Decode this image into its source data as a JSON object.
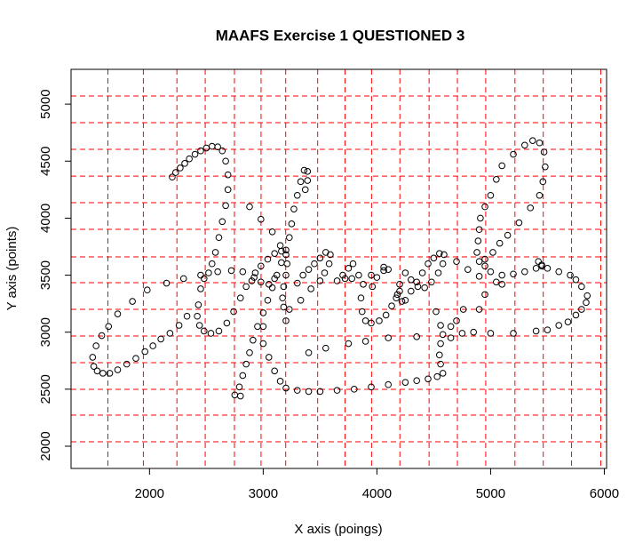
{
  "chart_data": {
    "type": "scatter",
    "title": "MAAFS Exercise 1 QUESTIONED 3",
    "x_label": "X axis (poings)",
    "y_label": "Y axis (points)",
    "xlim": [
      1310,
      6020
    ],
    "ylim": [
      1805,
      5305
    ],
    "xticks": [
      2000,
      3000,
      4000,
      5000,
      6000
    ],
    "yticks": [
      2000,
      2500,
      3000,
      3500,
      4000,
      4500,
      5000
    ],
    "color": "#000000",
    "grid_color": "#ff0000",
    "vlines": [
      1634,
      1946,
      2241,
      2490,
      2747,
      2981,
      3198,
      3479,
      3720,
      3953,
      4202,
      4459,
      4708,
      4957,
      5214,
      5463,
      5712,
      5969
    ],
    "hlines": [
      2039,
      2273,
      2499,
      2733,
      2966,
      3200,
      3434,
      3660,
      3902,
      4136,
      4369,
      4603,
      4837,
      5071
    ],
    "x": [
      2200,
      2230,
      2270,
      2310,
      2350,
      2400,
      2450,
      2500,
      2550,
      2600,
      2640,
      2670,
      2690,
      2690,
      2670,
      2640,
      2610,
      2580,
      2550,
      2520,
      2480,
      2450,
      2430,
      2420,
      2440,
      2480,
      2540,
      2610,
      2680,
      2740,
      2800,
      2850,
      1500,
      1530,
      1580,
      1640,
      1720,
      1850,
      1980,
      2150,
      2300,
      2450,
      2600,
      2720,
      2820,
      1510,
      1540,
      1590,
      1650,
      1720,
      1800,
      1880,
      1960,
      2030,
      2100,
      2180,
      2260,
      2330,
      2750,
      2800,
      2790,
      2820,
      2850,
      2880,
      2910,
      2950,
      3000,
      3040,
      3080,
      3120,
      3160,
      3200,
      3230,
      3250,
      3270,
      3300,
      3330,
      3360,
      3390,
      3390,
      3370,
      2900,
      2930,
      2980,
      3040,
      3100,
      3160,
      3200,
      3210,
      3200,
      3180,
      3170,
      3180,
      3230,
      3100,
      3050,
      2980,
      2920,
      2880,
      2980,
      3080,
      3150,
      3000,
      3000,
      3050,
      3100,
      3150,
      3200,
      3300,
      3400,
      3500,
      3650,
      3800,
      3950,
      4100,
      4250,
      4350,
      4450,
      4530,
      4580,
      4560,
      4550,
      4560,
      4580,
      4560,
      4520,
      4250,
      4300,
      4350,
      4400,
      4450,
      4500,
      4550,
      4590,
      4580,
      4540,
      4480,
      4420,
      4360,
      4300,
      4250,
      4200,
      4180,
      4220,
      3900,
      3950,
      4020,
      4080,
      4130,
      4170,
      4200,
      3960,
      4000,
      4060,
      4100,
      4060,
      3950,
      3880,
      3860,
      3870,
      3550,
      3590,
      3580,
      3540,
      3500,
      3650,
      3700,
      3750,
      3790,
      3720,
      3780,
      3840,
      3400,
      3450,
      3500,
      3350,
      3300,
      3420,
      3330,
      3200,
      3400,
      3550,
      3750,
      3900,
      4100,
      4350,
      4650,
      4750,
      4850,
      5000,
      5200,
      5400,
      5500,
      5600,
      5680,
      5750,
      5800,
      5840,
      5850,
      5800,
      5750,
      5700,
      5600,
      5500,
      5450,
      5420,
      5450,
      5400,
      5300,
      5200,
      5100,
      5000,
      4950,
      4900,
      4880,
      4890,
      4900,
      4910,
      4950,
      5000,
      5050,
      5100,
      5200,
      5300,
      5370,
      5430,
      5470,
      5480,
      5460,
      5430,
      5350,
      5250,
      5150,
      5080,
      5020,
      4950,
      4700,
      4800,
      4900,
      5100,
      4760,
      4700,
      4650,
      4900,
      4950,
      5050
    ],
    "values": [
      4360,
      4400,
      4440,
      4480,
      4520,
      4560,
      4590,
      4615,
      4630,
      4625,
      4590,
      4500,
      4380,
      4250,
      4110,
      3970,
      3830,
      3700,
      3600,
      3520,
      3470,
      3380,
      3240,
      3140,
      3060,
      3010,
      2990,
      3010,
      3080,
      3180,
      3300,
      3400,
      2780,
      2880,
      2970,
      3050,
      3160,
      3270,
      3370,
      3430,
      3470,
      3500,
      3530,
      3540,
      3530,
      2700,
      2660,
      2640,
      2640,
      2670,
      2720,
      2770,
      2830,
      2880,
      2940,
      2990,
      3060,
      3140,
      2450,
      2440,
      2520,
      2620,
      2720,
      2820,
      2930,
      3050,
      3170,
      3280,
      3390,
      3500,
      3610,
      3720,
      3830,
      3950,
      4080,
      4200,
      4320,
      4420,
      4410,
      4330,
      4250,
      3450,
      3520,
      3580,
      3640,
      3690,
      3710,
      3680,
      3600,
      3500,
      3400,
      3300,
      3220,
      3200,
      3470,
      3420,
      3440,
      3480,
      4100,
      3990,
      3880,
      3760,
      3050,
      2900,
      2780,
      2660,
      2570,
      2510,
      2490,
      2480,
      2480,
      2490,
      2500,
      2520,
      2540,
      2560,
      2575,
      2590,
      2610,
      2640,
      2720,
      2800,
      2900,
      2980,
      3060,
      3180,
      3280,
      3360,
      3440,
      3520,
      3600,
      3650,
      3690,
      3680,
      3600,
      3520,
      3440,
      3390,
      3400,
      3460,
      3520,
      3420,
      3330,
      3270,
      3100,
      3080,
      3100,
      3150,
      3230,
      3300,
      3360,
      3400,
      3480,
      3540,
      3550,
      3570,
      3500,
      3420,
      3300,
      3180,
      3700,
      3680,
      3600,
      3520,
      3450,
      3450,
      3500,
      3560,
      3600,
      3470,
      3470,
      3500,
      3550,
      3600,
      3650,
      3500,
      3430,
      3380,
      3280,
      3100,
      2820,
      2860,
      2900,
      2920,
      2950,
      2960,
      2950,
      2990,
      3000,
      2990,
      2990,
      3010,
      3020,
      3060,
      3090,
      3150,
      3200,
      3260,
      3320,
      3400,
      3460,
      3500,
      3530,
      3560,
      3580,
      3620,
      3590,
      3560,
      3530,
      3510,
      3500,
      3530,
      3580,
      3620,
      3700,
      3800,
      3900,
      4000,
      4100,
      4200,
      4340,
      4460,
      4560,
      4640,
      4680,
      4660,
      4580,
      4450,
      4320,
      4200,
      4090,
      3960,
      3850,
      3780,
      3700,
      3640,
      3620,
      3550,
      3490,
      3420,
      3200,
      3100,
      3050,
      3200,
      3330,
      3440
    ]
  }
}
